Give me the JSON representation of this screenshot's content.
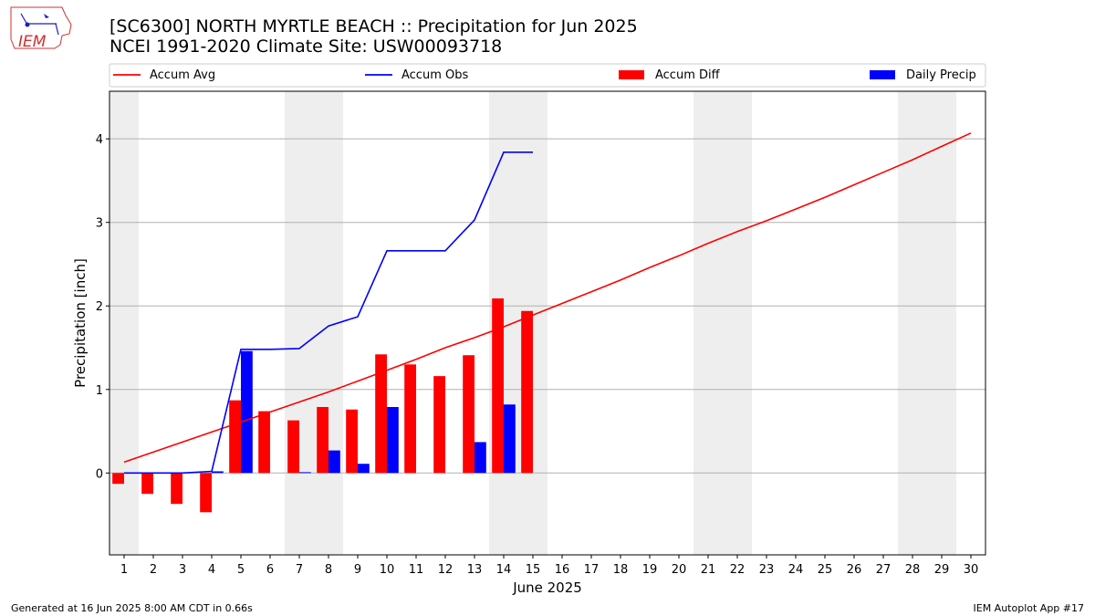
{
  "header": {
    "title_line1": "[SC6300] NORTH MYRTLE BEACH :: Precipitation for Jun 2025",
    "title_line2": "NCEI 1991-2020 Climate Site: USW00093718",
    "logo_text": "IEM"
  },
  "footer": {
    "left": "Generated at 16 Jun 2025 8:00 AM CDT in 0.66s",
    "right": "IEM Autoplot App #17"
  },
  "colors": {
    "accum_avg": "#ff0000",
    "accum_obs": "#0000ff",
    "accum_diff": "#ff0000",
    "daily_precip": "#0000ff",
    "weekend_shade": "#eeeeee",
    "grid": "#b0b0b0"
  },
  "chart_data": {
    "type": "bar",
    "xlabel": "June 2025",
    "ylabel": "Precipitation [inch]",
    "xlim": [
      0.5,
      30.5
    ],
    "ylim": [
      -0.98,
      4.57
    ],
    "yticks": [
      0,
      1,
      2,
      3,
      4
    ],
    "grid": "y",
    "legend_position": "top",
    "days": [
      1,
      2,
      3,
      4,
      5,
      6,
      7,
      8,
      9,
      10,
      11,
      12,
      13,
      14,
      15,
      16,
      17,
      18,
      19,
      20,
      21,
      22,
      23,
      24,
      25,
      26,
      27,
      28,
      29,
      30
    ],
    "weekend_days": [
      1,
      7,
      8,
      14,
      15,
      21,
      22,
      28,
      29
    ],
    "legend": [
      "Accum Avg",
      "Accum Obs",
      "Accum Diff",
      "Daily Precip"
    ],
    "series": [
      {
        "name": "Accum Avg",
        "kind": "line",
        "x": [
          1,
          2,
          3,
          4,
          5,
          6,
          7,
          8,
          9,
          10,
          11,
          12,
          13,
          14,
          15,
          16,
          17,
          18,
          19,
          20,
          21,
          22,
          23,
          24,
          25,
          26,
          27,
          28,
          29,
          30
        ],
        "values": [
          0.13,
          0.25,
          0.37,
          0.49,
          0.61,
          0.73,
          0.85,
          0.97,
          1.1,
          1.23,
          1.36,
          1.5,
          1.62,
          1.75,
          1.89,
          2.03,
          2.17,
          2.31,
          2.46,
          2.6,
          2.75,
          2.89,
          3.02,
          3.16,
          3.3,
          3.45,
          3.6,
          3.75,
          3.91,
          4.07
        ]
      },
      {
        "name": "Accum Obs",
        "kind": "line",
        "x": [
          1,
          2,
          3,
          4,
          5,
          6,
          7,
          8,
          9,
          10,
          11,
          12,
          13,
          14,
          15
        ],
        "values": [
          0.0,
          0.0,
          0.0,
          0.02,
          1.48,
          1.48,
          1.49,
          1.76,
          1.87,
          2.66,
          2.66,
          2.66,
          3.03,
          3.84,
          3.84
        ]
      },
      {
        "name": "Accum Diff",
        "kind": "bar",
        "x": [
          1,
          2,
          3,
          4,
          5,
          6,
          7,
          8,
          9,
          10,
          11,
          12,
          13,
          14,
          15
        ],
        "values": [
          -0.13,
          -0.25,
          -0.37,
          -0.47,
          0.87,
          0.74,
          0.63,
          0.79,
          0.76,
          1.42,
          1.3,
          1.16,
          1.41,
          2.09,
          1.94
        ]
      },
      {
        "name": "Daily Precip",
        "kind": "bar",
        "x": [
          1,
          2,
          3,
          4,
          5,
          6,
          7,
          8,
          9,
          10,
          11,
          12,
          13,
          14,
          15
        ],
        "values": [
          0,
          0,
          0,
          0.02,
          1.46,
          0,
          0.01,
          0.27,
          0.11,
          0.79,
          0,
          0,
          0.37,
          0.82,
          0
        ]
      }
    ]
  }
}
